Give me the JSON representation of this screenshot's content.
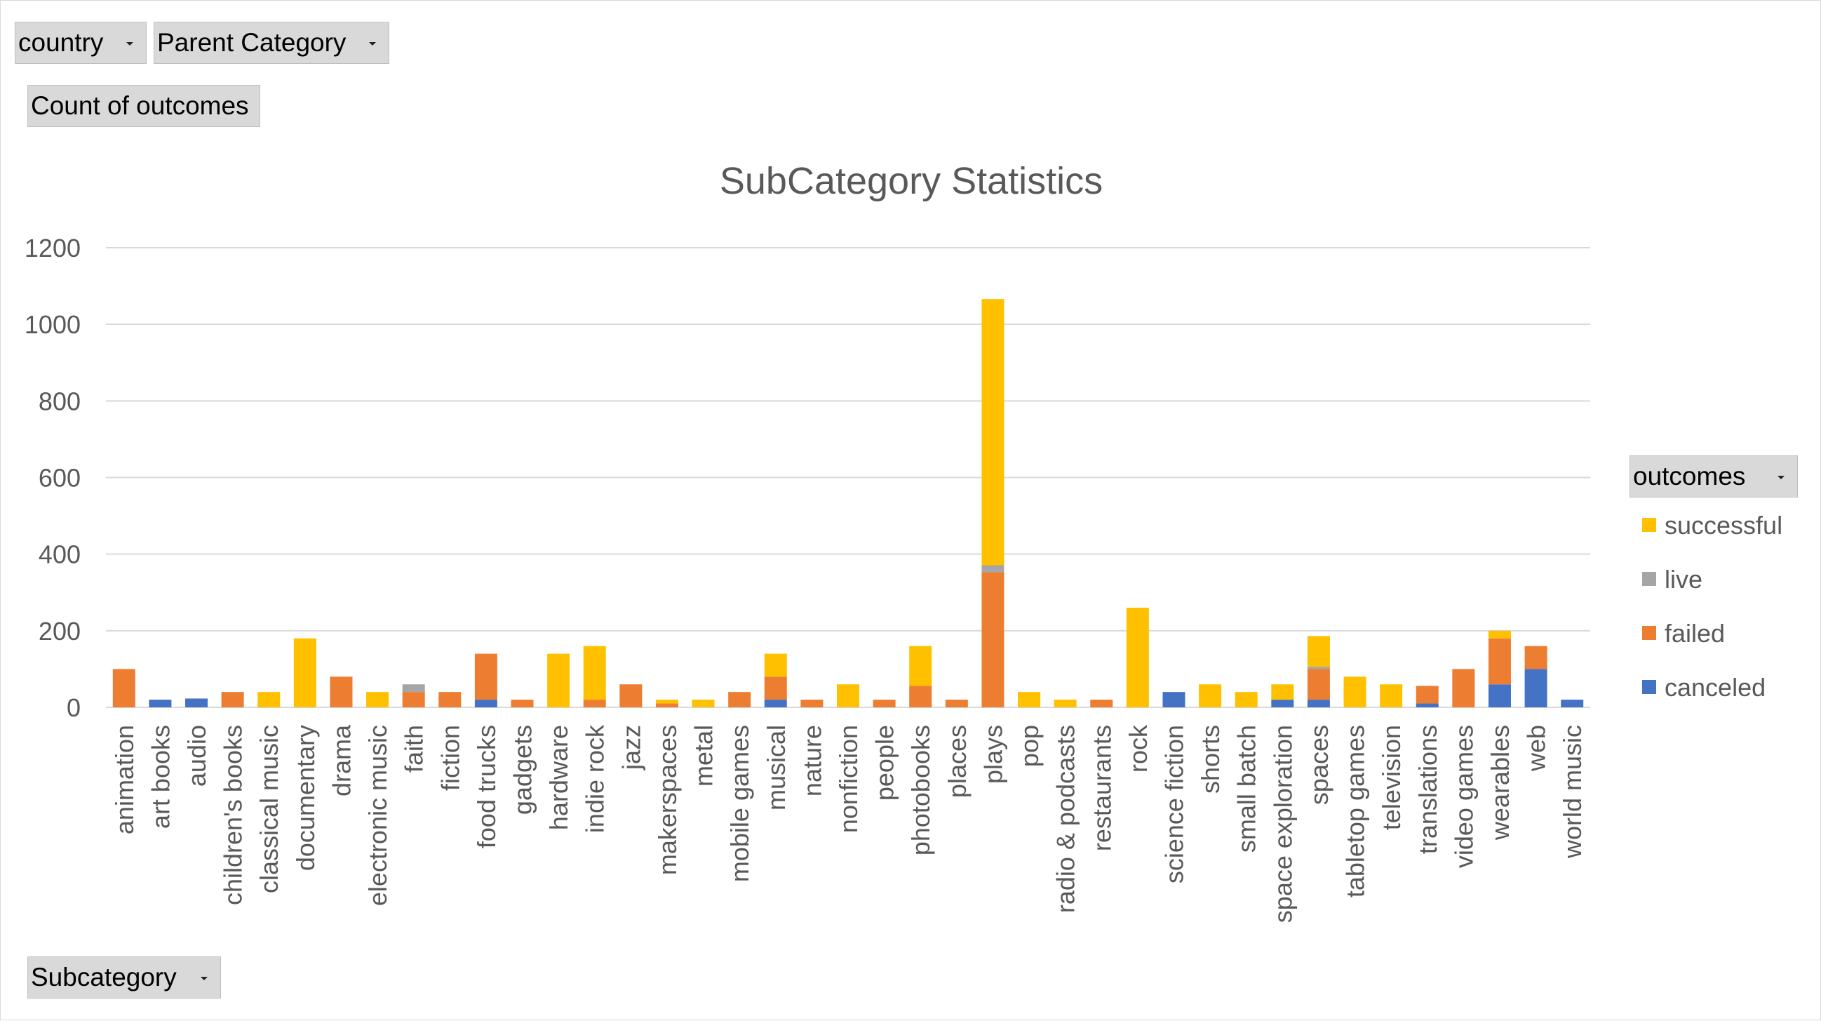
{
  "filters": {
    "country_label": "country",
    "parent_category_label": "Parent Category",
    "values_label": "Count of outcomes",
    "axis_field_label": "Subcategory",
    "legend_field_label": "outcomes"
  },
  "chart_data": {
    "type": "bar",
    "stacked": true,
    "title": "SubCategory Statistics",
    "xlabel": "",
    "ylabel": "",
    "ylim": [
      0,
      1200
    ],
    "yticks": [
      0,
      200,
      400,
      600,
      800,
      1000,
      1200
    ],
    "grid": true,
    "legend_position": "right",
    "categories": [
      "animation",
      "art books",
      "audio",
      "children's books",
      "classical music",
      "documentary",
      "drama",
      "electronic music",
      "faith",
      "fiction",
      "food trucks",
      "gadgets",
      "hardware",
      "indie rock",
      "jazz",
      "makerspaces",
      "metal",
      "mobile games",
      "musical",
      "nature",
      "nonfiction",
      "people",
      "photobooks",
      "places",
      "plays",
      "pop",
      "radio & podcasts",
      "restaurants",
      "rock",
      "science fiction",
      "shorts",
      "small batch",
      "space exploration",
      "spaces",
      "tabletop games",
      "television",
      "translations",
      "video games",
      "wearables",
      "web",
      "world music"
    ],
    "series": [
      {
        "name": "canceled",
        "color": "#4472c4",
        "values": [
          0,
          20,
          23,
          0,
          0,
          0,
          0,
          0,
          0,
          0,
          20,
          0,
          0,
          0,
          0,
          0,
          0,
          0,
          20,
          0,
          0,
          0,
          0,
          0,
          0,
          0,
          0,
          0,
          0,
          40,
          0,
          0,
          20,
          20,
          0,
          0,
          10,
          0,
          60,
          100,
          20
        ]
      },
      {
        "name": "failed",
        "color": "#ed7d31",
        "values": [
          100,
          0,
          0,
          40,
          0,
          0,
          80,
          0,
          40,
          40,
          120,
          20,
          0,
          20,
          60,
          10,
          0,
          40,
          60,
          20,
          0,
          20,
          56,
          20,
          353,
          0,
          0,
          20,
          0,
          0,
          0,
          0,
          0,
          80,
          0,
          0,
          46,
          100,
          120,
          60,
          0
        ]
      },
      {
        "name": "live",
        "color": "#a5a5a5",
        "values": [
          0,
          0,
          0,
          0,
          0,
          0,
          0,
          0,
          20,
          0,
          0,
          0,
          0,
          0,
          0,
          0,
          0,
          0,
          0,
          0,
          0,
          0,
          0,
          0,
          18,
          0,
          0,
          0,
          0,
          0,
          0,
          0,
          0,
          6,
          0,
          0,
          0,
          0,
          0,
          0,
          0
        ]
      },
      {
        "name": "successful",
        "color": "#ffc000",
        "values": [
          0,
          0,
          0,
          0,
          40,
          180,
          0,
          40,
          0,
          0,
          0,
          0,
          140,
          140,
          0,
          10,
          20,
          0,
          60,
          0,
          60,
          0,
          104,
          0,
          695,
          40,
          20,
          0,
          260,
          0,
          60,
          40,
          40,
          80,
          80,
          60,
          0,
          0,
          20,
          0,
          0
        ]
      }
    ],
    "legend_order": [
      "successful",
      "live",
      "failed",
      "canceled"
    ]
  }
}
